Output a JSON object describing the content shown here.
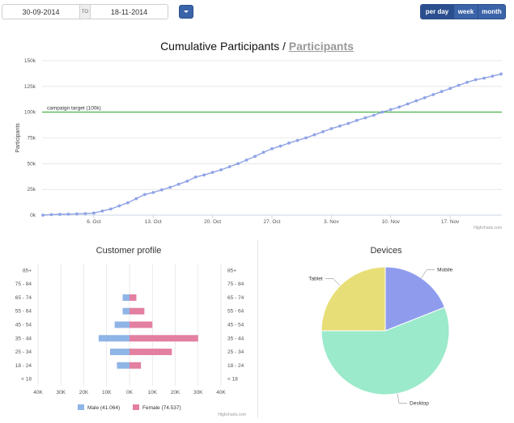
{
  "toolbar": {
    "date_from": "30-09-2014",
    "date_to_label": "TO",
    "date_to": "18-11-2014",
    "periods": [
      {
        "label": "per day",
        "active": true
      },
      {
        "label": "week",
        "active": false
      },
      {
        "label": "month",
        "active": false
      }
    ],
    "accent": "#3a63a8"
  },
  "main_chart": {
    "title": "Cumulative Participants",
    "title_separator": "/",
    "title_link": "Participants",
    "credits": "Highcharts.com"
  },
  "profile_chart": {
    "title": "Customer profile",
    "credits": "Highcharts.com"
  },
  "devices_chart": {
    "title": "Devices"
  },
  "chart_data": [
    {
      "type": "line",
      "title": "Cumulative Participants",
      "xlabel": "",
      "ylabel": "Participants",
      "ylim": [
        0,
        150000
      ],
      "yticks": [
        0,
        25000,
        50000,
        75000,
        100000,
        125000,
        150000
      ],
      "ytick_labels": [
        "0k",
        "25k",
        "50k",
        "75k",
        "100k",
        "125k",
        "150k"
      ],
      "x_start": "2014-09-30",
      "xticks": [
        "6. Oct",
        "13. Oct",
        "20. Oct",
        "27. Oct",
        "3. Nov",
        "10. Nov",
        "17. Nov"
      ],
      "grid": true,
      "plot_line": {
        "value": 100000,
        "label": "campaign target (100k)",
        "color": "#009900"
      },
      "series": [
        {
          "color": "#8fa3e6",
          "values": [
            0,
            500,
            800,
            1000,
            1200,
            1500,
            2000,
            4000,
            6000,
            9000,
            12000,
            16000,
            20000,
            22000,
            24500,
            27000,
            30000,
            33000,
            37000,
            39000,
            41500,
            44000,
            47000,
            50000,
            53500,
            57000,
            61000,
            64500,
            67000,
            70000,
            72500,
            75000,
            78000,
            81000,
            84000,
            86500,
            89000,
            92000,
            94500,
            97000,
            100000,
            102500,
            105000,
            108000,
            111000,
            114000,
            117000,
            120000,
            123000,
            126000,
            129000,
            131500,
            133000,
            135000,
            137000
          ]
        }
      ]
    },
    {
      "type": "bar",
      "title": "Customer profile",
      "categories": [
        "85+",
        "75 - 84",
        "65 - 74",
        "55 - 64",
        "45 - 54",
        "35 - 44",
        "25 - 34",
        "18 - 24",
        "< 18"
      ],
      "xlim": [
        -40000,
        40000
      ],
      "xticks": [
        "40K",
        "30K",
        "20K",
        "10K",
        "0K",
        "10K",
        "20K",
        "30K",
        "40K"
      ],
      "legend": "bottom-center",
      "series": [
        {
          "name": "Male (41.064)",
          "color": "#8fb4e6",
          "values": [
            0,
            0,
            -3000,
            -3000,
            -6500,
            -13500,
            -8500,
            -5500,
            0
          ]
        },
        {
          "name": "Female (74.537)",
          "color": "#e37fa1",
          "values": [
            0,
            0,
            3000,
            6500,
            10000,
            30000,
            18500,
            5000,
            0
          ]
        }
      ]
    },
    {
      "type": "pie",
      "title": "Devices",
      "labels": [
        "Mobile",
        "Desktop",
        "Tablet"
      ],
      "values": [
        19,
        56,
        25
      ],
      "colors": [
        "#8f9cee",
        "#9beacb",
        "#e8de77"
      ]
    }
  ]
}
